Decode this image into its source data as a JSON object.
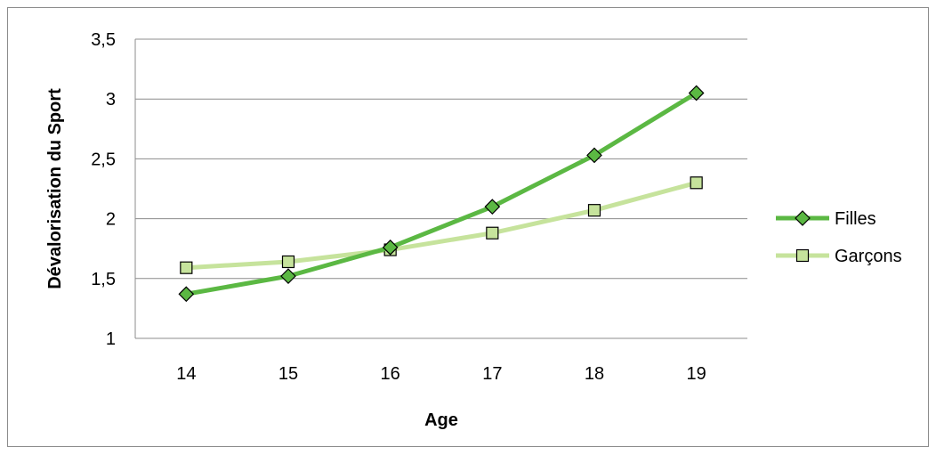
{
  "chart_data": {
    "type": "line",
    "title": "",
    "xlabel": "Age",
    "ylabel": "Dévalorisation du Sport",
    "x": [
      14,
      15,
      16,
      17,
      18,
      19
    ],
    "x_tick_labels": [
      "14",
      "15",
      "16",
      "17",
      "18",
      "19"
    ],
    "ylim": [
      1,
      3.5
    ],
    "y_ticks": [
      1,
      1.5,
      2,
      2.5,
      3,
      3.5
    ],
    "y_tick_labels": [
      "1",
      "1,5",
      "2",
      "2,5",
      "3",
      "3,5"
    ],
    "grid": "horizontal",
    "legend_position": "right",
    "series": [
      {
        "name": "Filles",
        "values": [
          1.37,
          1.52,
          1.76,
          2.1,
          2.53,
          3.05
        ],
        "color": "#5bb843",
        "marker": "diamond",
        "marker_fill": "#5bb843"
      },
      {
        "name": "Garçons",
        "values": [
          1.59,
          1.64,
          1.74,
          1.88,
          2.07,
          2.3
        ],
        "color": "#c6e39c",
        "marker": "square",
        "marker_fill": "#c6e39c"
      }
    ]
  }
}
